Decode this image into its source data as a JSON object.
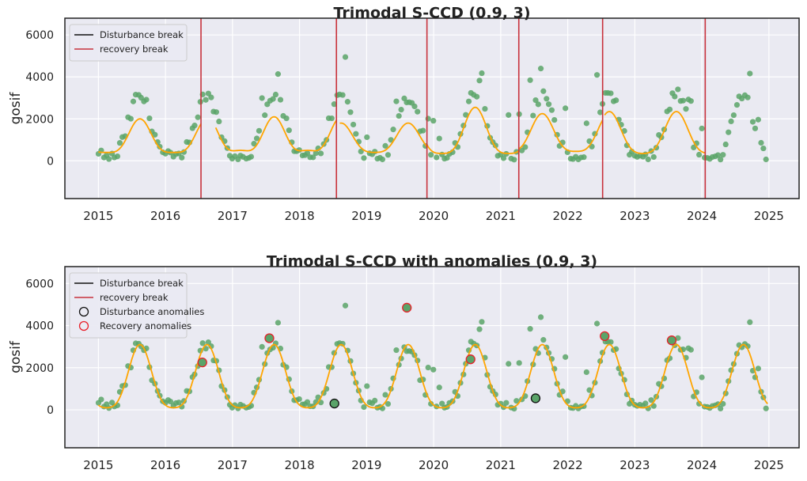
{
  "chart_data": [
    {
      "type": "scatter",
      "title": "Trimodal S-CCD (0.9, 3)",
      "ylabel": "gosif",
      "xlabel": "",
      "xlim": [
        2014.5,
        2025.45
      ],
      "ylim": [
        -1800,
        6800
      ],
      "xticks": [
        2015,
        2016,
        2017,
        2018,
        2019,
        2020,
        2021,
        2022,
        2023,
        2024,
        2025
      ],
      "yticks": [
        0,
        2000,
        4000,
        6000
      ],
      "grid": true,
      "legend_position": "top-left",
      "legend": [
        {
          "label": "Disturbance break",
          "kind": "line",
          "color": "#111111"
        },
        {
          "label": "recovery break",
          "kind": "line",
          "color": "#c8323c"
        }
      ],
      "recovery_breaks": [
        2016.53,
        2018.55,
        2019.9,
        2021.27,
        2022.52,
        2024.05
      ],
      "fit_segments": [
        {
          "start": 2015.0,
          "end": 2016.53,
          "mean": 1000,
          "amp1": 800,
          "amp2": 200,
          "phase": 0.62
        },
        {
          "start": 2016.75,
          "end": 2018.55,
          "mean": 1050,
          "amp1": 800,
          "amp2": 250,
          "phase": 0.62
        },
        {
          "start": 2018.6,
          "end": 2019.9,
          "mean": 950,
          "amp1": 700,
          "amp2": 150,
          "phase": 0.62
        },
        {
          "start": 2019.9,
          "end": 2021.27,
          "mean": 1200,
          "amp1": 1100,
          "amp2": 250,
          "phase": 0.62
        },
        {
          "start": 2021.27,
          "end": 2022.52,
          "mean": 1150,
          "amp1": 900,
          "amp2": 200,
          "phase": 0.62
        },
        {
          "start": 2022.55,
          "end": 2024.05,
          "mean": 1150,
          "amp1": 1000,
          "amp2": 200,
          "phase": 0.62
        }
      ],
      "point_color": "#5aa469",
      "fit_color": "#ffa500"
    },
    {
      "type": "scatter",
      "title": "Trimodal S-CCD with anomalies (0.9, 3)",
      "ylabel": "gosif",
      "xlabel": "",
      "xlim": [
        2014.5,
        2025.45
      ],
      "ylim": [
        -1800,
        6800
      ],
      "xticks": [
        2015,
        2016,
        2017,
        2018,
        2019,
        2020,
        2021,
        2022,
        2023,
        2024,
        2025
      ],
      "yticks": [
        0,
        2000,
        4000,
        6000
      ],
      "grid": true,
      "legend_position": "top-left",
      "legend": [
        {
          "label": "Disturbance break",
          "kind": "line",
          "color": "#111111"
        },
        {
          "label": "recovery break",
          "kind": "line",
          "color": "#c8323c"
        },
        {
          "label": "Disturbance anomalies",
          "kind": "circle",
          "color": "#111111"
        },
        {
          "label": "Recovery anomalies",
          "kind": "circle",
          "color": "#e8202a"
        }
      ],
      "fit_segments": [
        {
          "start": 2015.0,
          "end": 2024.98,
          "mean": 1300,
          "amp1": 1500,
          "amp2": 300,
          "phase": 0.62
        }
      ],
      "disturbance_anomalies": [
        {
          "x": 2018.52,
          "y": 300
        },
        {
          "x": 2021.52,
          "y": 550
        }
      ],
      "recovery_anomalies": [
        {
          "x": 2016.55,
          "y": 2250
        },
        {
          "x": 2017.55,
          "y": 3400
        },
        {
          "x": 2019.6,
          "y": 4850
        },
        {
          "x": 2020.55,
          "y": 2400
        },
        {
          "x": 2022.55,
          "y": 3500
        },
        {
          "x": 2023.55,
          "y": 3300
        }
      ],
      "point_color": "#5aa469",
      "fit_color": "#ffa500"
    }
  ]
}
